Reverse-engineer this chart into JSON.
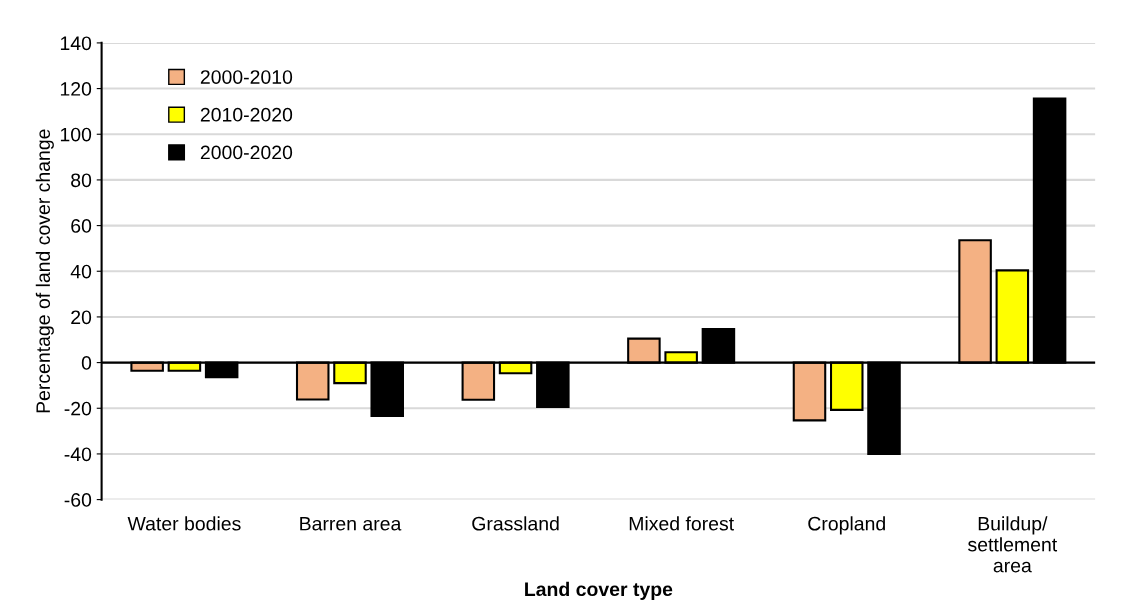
{
  "chart_data": {
    "type": "bar",
    "xlabel": "Land cover type",
    "ylabel": "Percentage of land cover change",
    "categories": [
      "Water bodies",
      "Barren area",
      "Grassland",
      "Mixed forest",
      "Cropland",
      "Buildup/\nsettlement\narea"
    ],
    "series": [
      {
        "name": "2000-2010",
        "color": "#f4b183",
        "values": [
          -3.6,
          -16.2,
          -16.3,
          10.5,
          -25.3,
          53.6
        ]
      },
      {
        "name": "2010-2020",
        "color": "#ffff00",
        "values": [
          -3.6,
          -9,
          -4.7,
          4.5,
          -20.7,
          40.4
        ]
      },
      {
        "name": "2000-2020",
        "color": "#000000",
        "values": [
          -6.4,
          -23.4,
          -19.4,
          14.7,
          -40,
          115.6
        ]
      }
    ],
    "ylim": [
      -60,
      140
    ],
    "yticks": [
      -60,
      -40,
      -20,
      0,
      20,
      40,
      60,
      80,
      100,
      120,
      140
    ],
    "grid": "y",
    "legend": "top left"
  }
}
